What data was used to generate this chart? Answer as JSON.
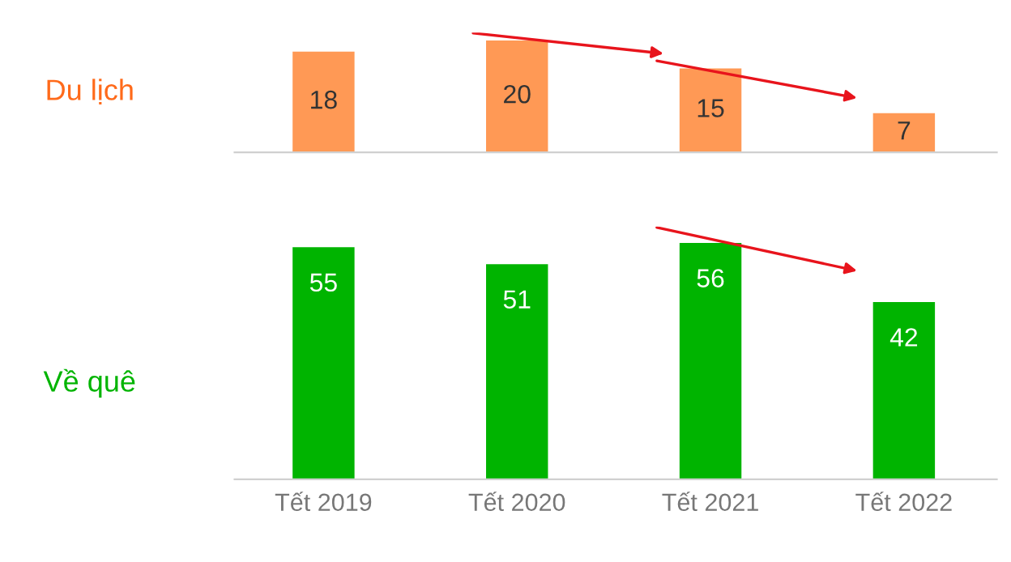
{
  "chart_data": [
    {
      "type": "bar",
      "ylabel": "Du lịch",
      "categories": [
        null,
        null,
        null,
        null
      ],
      "values": [
        18,
        20,
        15,
        7
      ],
      "color": "#ff9955",
      "data_labels": true,
      "tick_labels": false,
      "grid": false,
      "legend": false
    },
    {
      "type": "bar",
      "ylabel": "Về quê",
      "categories": [
        "Tết 2019",
        "Tết 2020",
        "Tết 2021",
        "Tết 2022"
      ],
      "values": [
        55,
        51,
        56,
        42
      ],
      "color": "#00b400",
      "data_labels": true,
      "tick_labels": "x",
      "grid": false,
      "legend": false
    }
  ]
}
